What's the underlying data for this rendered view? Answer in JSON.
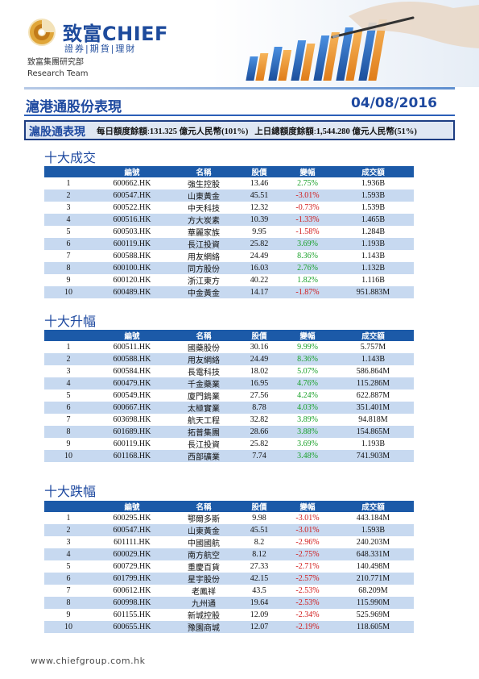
{
  "header": {
    "brand": "致富CHIEF",
    "brand_sub": "證券|期貨|理財",
    "dept_zh": "致富集團研究部",
    "dept_en": "Research Team"
  },
  "title": {
    "text": "滬港通股份表現",
    "date": "04/08/2016"
  },
  "summary": {
    "label": "滬股通表現",
    "daily_quota_label": "每日額度餘額",
    "daily_quota_value": "131.325 億元人民幣(101%)",
    "prev_quota_label": "上日總額度餘額",
    "prev_quota_value": "1,544.280 億元人民幣(51%)"
  },
  "columns": [
    "",
    "編號",
    "名稱",
    "股價",
    "變幅",
    "成交額"
  ],
  "colors": {
    "up": "#1aa12a",
    "down": "#d11a1a",
    "header_bg": "#1c5aa8",
    "alt_row": "#c7d9f0"
  },
  "sections": [
    {
      "title": "十大成交",
      "rows": [
        {
          "rank": "1",
          "code": "600662.HK",
          "name": "強生控股",
          "price": "13.46",
          "change": "2.75%",
          "dir": "up",
          "turnover": "1.936B"
        },
        {
          "rank": "2",
          "code": "600547.HK",
          "name": "山東黃金",
          "price": "45.51",
          "change": "-3.01%",
          "dir": "down",
          "turnover": "1.593B"
        },
        {
          "rank": "3",
          "code": "600522.HK",
          "name": "中天科技",
          "price": "12.32",
          "change": "-0.73%",
          "dir": "down",
          "turnover": "1.539B"
        },
        {
          "rank": "4",
          "code": "600516.HK",
          "name": "方大炭素",
          "price": "10.39",
          "change": "-1.33%",
          "dir": "down",
          "turnover": "1.465B"
        },
        {
          "rank": "5",
          "code": "600503.HK",
          "name": "華麗家族",
          "price": "9.95",
          "change": "-1.58%",
          "dir": "down",
          "turnover": "1.284B"
        },
        {
          "rank": "6",
          "code": "600119.HK",
          "name": "長江投資",
          "price": "25.82",
          "change": "3.69%",
          "dir": "up",
          "turnover": "1.193B"
        },
        {
          "rank": "7",
          "code": "600588.HK",
          "name": "用友網絡",
          "price": "24.49",
          "change": "8.36%",
          "dir": "up",
          "turnover": "1.143B"
        },
        {
          "rank": "8",
          "code": "600100.HK",
          "name": "同方股份",
          "price": "16.03",
          "change": "2.76%",
          "dir": "up",
          "turnover": "1.132B"
        },
        {
          "rank": "9",
          "code": "600120.HK",
          "name": "浙江東方",
          "price": "40.22",
          "change": "1.82%",
          "dir": "up",
          "turnover": "1.116B"
        },
        {
          "rank": "10",
          "code": "600489.HK",
          "name": "中金黃金",
          "price": "14.17",
          "change": "-1.87%",
          "dir": "down",
          "turnover": "951.883M"
        }
      ]
    },
    {
      "title": "十大升幅",
      "rows": [
        {
          "rank": "1",
          "code": "600511.HK",
          "name": "國藥股份",
          "price": "30.16",
          "change": "9.99%",
          "dir": "up",
          "turnover": "5.757M"
        },
        {
          "rank": "2",
          "code": "600588.HK",
          "name": "用友網絡",
          "price": "24.49",
          "change": "8.36%",
          "dir": "up",
          "turnover": "1.143B"
        },
        {
          "rank": "3",
          "code": "600584.HK",
          "name": "長電科技",
          "price": "18.02",
          "change": "5.07%",
          "dir": "up",
          "turnover": "586.864M"
        },
        {
          "rank": "4",
          "code": "600479.HK",
          "name": "千金藥業",
          "price": "16.95",
          "change": "4.76%",
          "dir": "up",
          "turnover": "115.286M"
        },
        {
          "rank": "5",
          "code": "600549.HK",
          "name": "廈門鎢業",
          "price": "27.56",
          "change": "4.24%",
          "dir": "up",
          "turnover": "622.887M"
        },
        {
          "rank": "6",
          "code": "600667.HK",
          "name": "太極實業",
          "price": "8.78",
          "change": "4.03%",
          "dir": "up",
          "turnover": "351.401M"
        },
        {
          "rank": "7",
          "code": "603698.HK",
          "name": "航天工程",
          "price": "32.82",
          "change": "3.89%",
          "dir": "up",
          "turnover": "94.818M"
        },
        {
          "rank": "8",
          "code": "601689.HK",
          "name": "拓普集團",
          "price": "28.66",
          "change": "3.88%",
          "dir": "up",
          "turnover": "154.865M"
        },
        {
          "rank": "9",
          "code": "600119.HK",
          "name": "長江投資",
          "price": "25.82",
          "change": "3.69%",
          "dir": "up",
          "turnover": "1.193B"
        },
        {
          "rank": "10",
          "code": "601168.HK",
          "name": "西部礦業",
          "price": "7.74",
          "change": "3.48%",
          "dir": "up",
          "turnover": "741.903M"
        }
      ]
    },
    {
      "title": "十大跌幅",
      "rows": [
        {
          "rank": "1",
          "code": "600295.HK",
          "name": "鄂爾多斯",
          "price": "9.98",
          "change": "-3.01%",
          "dir": "down",
          "turnover": "443.184M"
        },
        {
          "rank": "2",
          "code": "600547.HK",
          "name": "山東黃金",
          "price": "45.51",
          "change": "-3.01%",
          "dir": "down",
          "turnover": "1.593B"
        },
        {
          "rank": "3",
          "code": "601111.HK",
          "name": "中國國航",
          "price": "8.2",
          "change": "-2.96%",
          "dir": "down",
          "turnover": "240.203M"
        },
        {
          "rank": "4",
          "code": "600029.HK",
          "name": "南方航空",
          "price": "8.12",
          "change": "-2.75%",
          "dir": "down",
          "turnover": "648.331M"
        },
        {
          "rank": "5",
          "code": "600729.HK",
          "name": "重慶百貨",
          "price": "27.33",
          "change": "-2.71%",
          "dir": "down",
          "turnover": "140.498M"
        },
        {
          "rank": "6",
          "code": "601799.HK",
          "name": "星宇股份",
          "price": "42.15",
          "change": "-2.57%",
          "dir": "down",
          "turnover": "210.771M"
        },
        {
          "rank": "7",
          "code": "600612.HK",
          "name": "老鳳祥",
          "price": "43.5",
          "change": "-2.53%",
          "dir": "down",
          "turnover": "68.209M"
        },
        {
          "rank": "8",
          "code": "600998.HK",
          "name": "九州通",
          "price": "19.64",
          "change": "-2.53%",
          "dir": "down",
          "turnover": "115.990M"
        },
        {
          "rank": "9",
          "code": "601155.HK",
          "name": "新城控股",
          "price": "12.09",
          "change": "-2.34%",
          "dir": "down",
          "turnover": "525.969M"
        },
        {
          "rank": "10",
          "code": "600655.HK",
          "name": "豫園商城",
          "price": "12.07",
          "change": "-2.19%",
          "dir": "down",
          "turnover": "118.605M"
        }
      ]
    }
  ],
  "footer": {
    "url": "www.chiefgroup.com.hk"
  }
}
